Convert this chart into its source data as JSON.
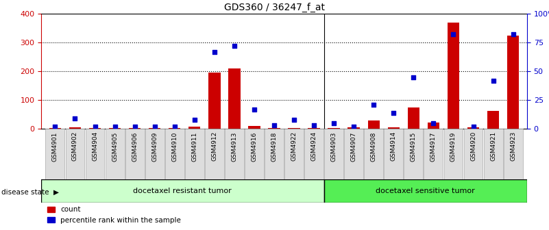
{
  "title": "GDS360 / 36247_f_at",
  "samples": [
    "GSM4901",
    "GSM4902",
    "GSM4904",
    "GSM4905",
    "GSM4906",
    "GSM4909",
    "GSM4910",
    "GSM4911",
    "GSM4912",
    "GSM4913",
    "GSM4916",
    "GSM4918",
    "GSM4922",
    "GSM4924",
    "GSM4903",
    "GSM4907",
    "GSM4908",
    "GSM4914",
    "GSM4915",
    "GSM4917",
    "GSM4919",
    "GSM4920",
    "GSM4921",
    "GSM4923"
  ],
  "counts": [
    2,
    4,
    2,
    2,
    2,
    2,
    2,
    7,
    195,
    210,
    10,
    2,
    2,
    2,
    2,
    4,
    28,
    4,
    75,
    22,
    370,
    4,
    62,
    325
  ],
  "percentile": [
    2,
    9,
    2,
    2,
    2,
    2,
    2,
    8,
    67,
    72,
    17,
    3,
    8,
    3,
    5,
    2,
    21,
    14,
    45,
    5,
    82,
    2,
    42,
    82
  ],
  "group1_label": "docetaxel resistant tumor",
  "group1_count": 14,
  "group2_label": "docetaxel sensitive tumor",
  "group2_count": 10,
  "bar_color": "#cc0000",
  "dot_color": "#0000cc",
  "ylim_left": [
    0,
    400
  ],
  "ylim_right": [
    0,
    100
  ],
  "yticks_left": [
    0,
    100,
    200,
    300,
    400
  ],
  "yticks_right": [
    0,
    25,
    50,
    75,
    100
  ],
  "yticklabels_right": [
    "0",
    "25",
    "50",
    "75",
    "100%"
  ],
  "group1_color": "#ccffcc",
  "group2_color": "#55ee55",
  "disease_label": "disease state",
  "legend_count": "count",
  "legend_percentile": "percentile rank within the sample"
}
